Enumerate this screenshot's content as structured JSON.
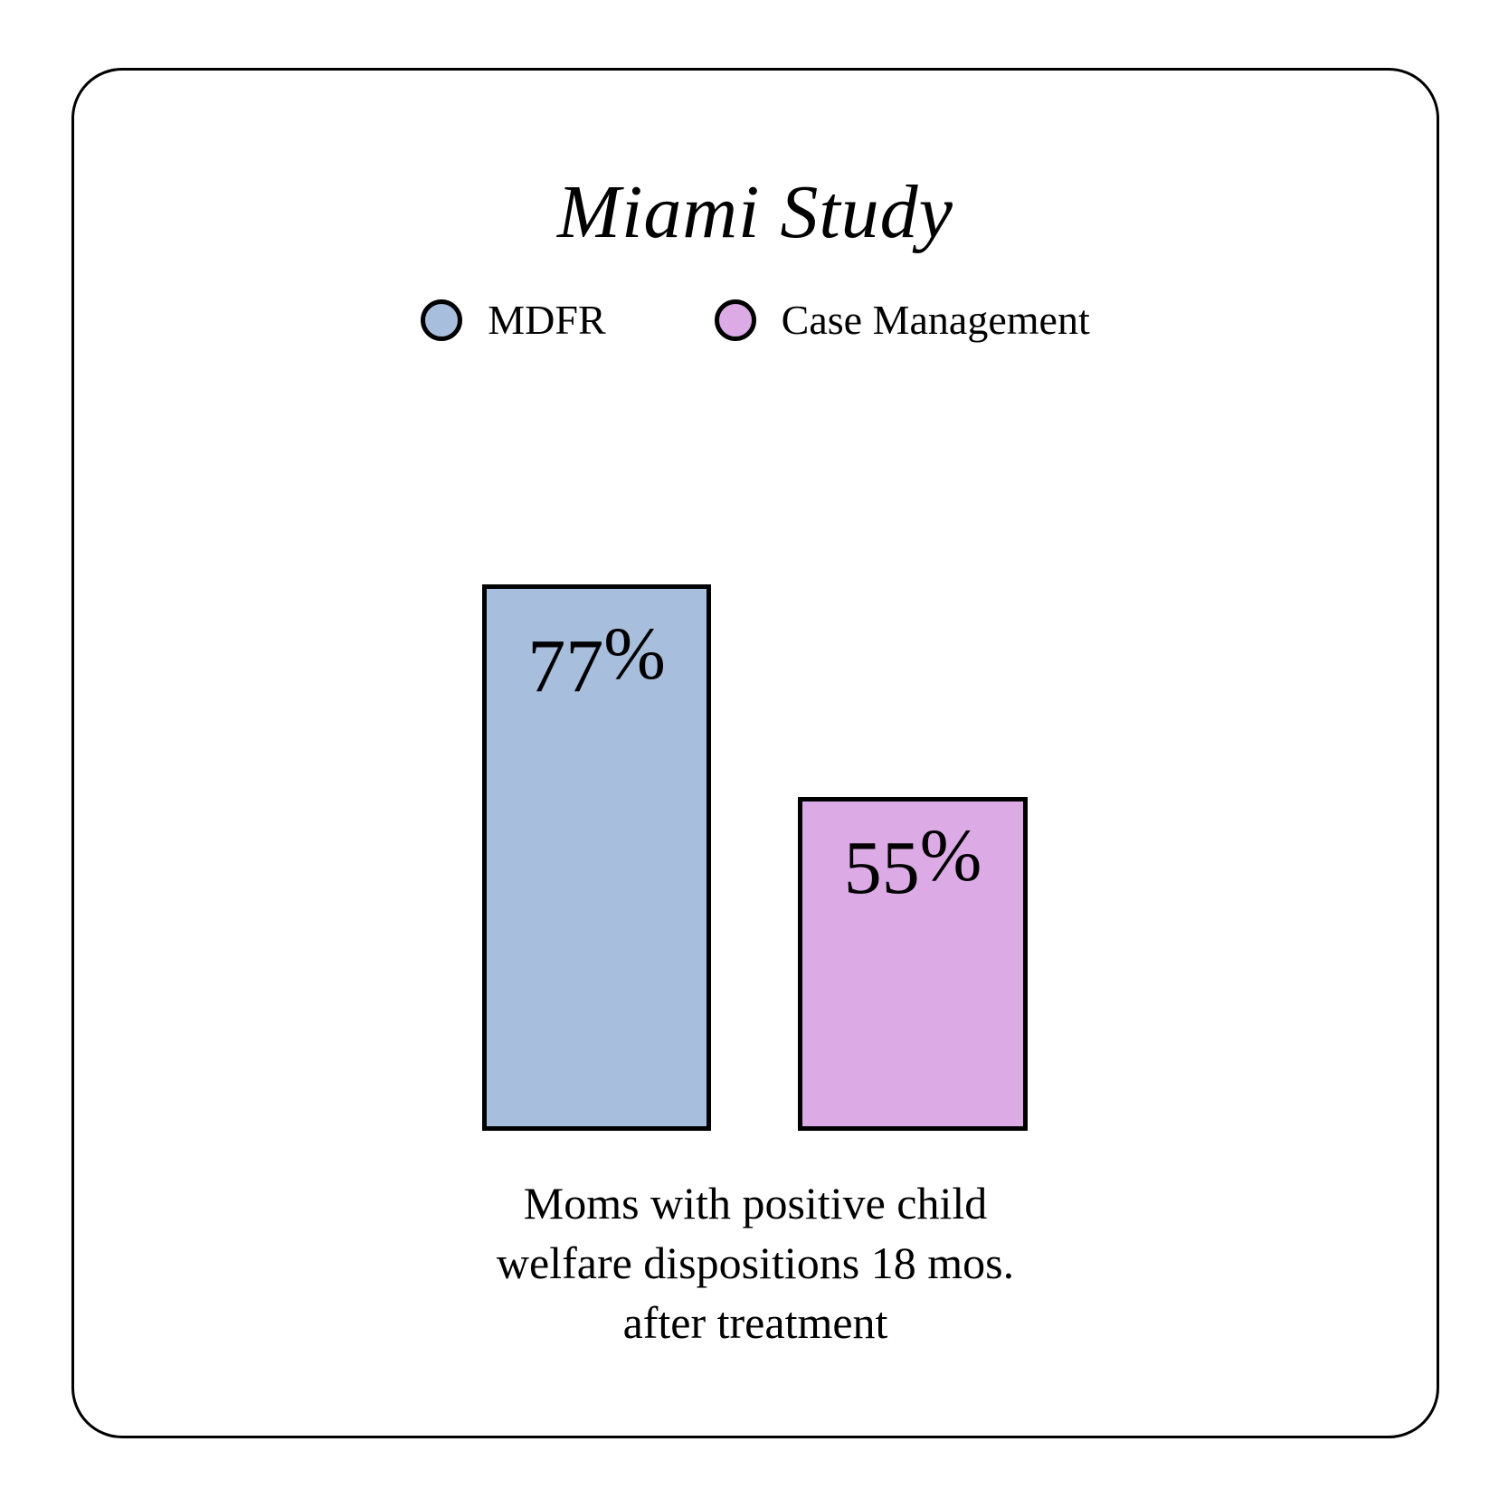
{
  "title": "Miami Study",
  "legend": {
    "items": [
      {
        "label": "MDFR",
        "color": "#a7bedd"
      },
      {
        "label": "Case Management",
        "color": "#dcabe6"
      }
    ]
  },
  "bars": [
    {
      "name": "MDFR",
      "value": "77",
      "suffix": "%",
      "color": "#a7bedd"
    },
    {
      "name": "Case Management",
      "value": "55",
      "suffix": "%",
      "color": "#dcabe6"
    }
  ],
  "caption": {
    "lines": [
      "Moms with positive child",
      "welfare dispositions 18 mos.",
      "after treatment"
    ]
  },
  "chart_data": {
    "type": "bar",
    "title": "Miami Study",
    "categories": [
      "MDFR",
      "Case Management"
    ],
    "values": [
      77,
      55
    ],
    "value_labels": [
      "77%",
      "55%"
    ],
    "series_colors": [
      "#a7bedd",
      "#dcabe6"
    ],
    "bar_border_color": "#000000",
    "ylim": [
      0,
      100
    ],
    "unit": "percent",
    "grid": false,
    "axes_visible": false,
    "legend_position": "top-center",
    "xlabel": "",
    "ylabel": "",
    "caption": "Moms with positive child welfare dispositions 18 mos. after treatment"
  }
}
